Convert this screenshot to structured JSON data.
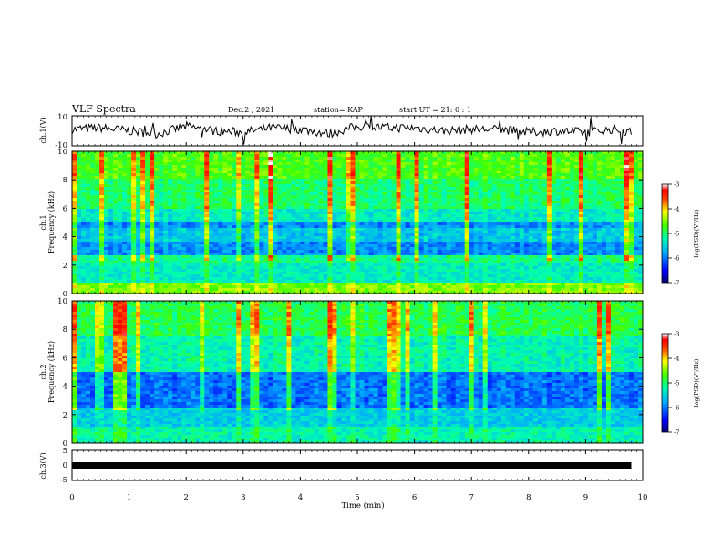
{
  "header": {
    "title": "VLF Spectra",
    "date": "Dec.2 , 2021",
    "station": "station= KAP",
    "start_ut": "start  UT =  21: 0  : 1"
  },
  "chart_data": [
    {
      "type": "line",
      "panel": "ch1-waveform",
      "ylabel": "ch.1(V)",
      "ylim": [
        -10,
        10
      ],
      "yticks": [
        "10",
        "-10"
      ],
      "x": [
        0.0,
        0.5,
        1.0,
        1.5,
        2.0,
        2.5,
        3.0,
        3.5,
        4.0,
        4.5,
        5.0,
        5.5,
        6.0,
        6.5,
        7.0,
        7.5,
        8.0,
        8.5,
        9.0,
        9.5,
        9.8
      ],
      "y": [
        1,
        2,
        0,
        -2,
        3,
        0,
        -1,
        2,
        1,
        -2,
        3,
        2,
        2,
        0,
        1,
        1,
        -1,
        0,
        -1,
        1,
        -1
      ]
    },
    {
      "type": "heatmap",
      "panel": "ch1-spectrogram",
      "ylabel": "ch.1\nFrequency  (kHz)",
      "ylim": [
        0,
        10
      ],
      "yticks": [
        "0",
        "2",
        "4",
        "6",
        "8",
        "10"
      ],
      "colorbar": {
        "label": "log(PSD)(V²/Hz)",
        "range": [
          -7,
          -3
        ],
        "ticks": [
          "-3",
          "-4",
          "-5",
          "-6",
          "-7"
        ]
      }
    },
    {
      "type": "heatmap",
      "panel": "ch2-spectrogram",
      "ylabel": "ch.2\nFrequency  (kHz)",
      "ylim": [
        0,
        10
      ],
      "yticks": [
        "0",
        "2",
        "4",
        "6",
        "8",
        "10"
      ],
      "colorbar": {
        "label": "log(PSD)(V²/Hz)",
        "range": [
          -7,
          -3
        ],
        "ticks": [
          "-3",
          "-4",
          "-5",
          "-6",
          "-7"
        ]
      }
    },
    {
      "type": "line",
      "panel": "ch3-waveform",
      "ylabel": "ch.3(V)",
      "ylim": [
        -5,
        5
      ],
      "yticks": [
        "5",
        "0",
        "-5"
      ],
      "x": [
        0.0,
        9.8
      ],
      "y": [
        0,
        0
      ]
    }
  ],
  "xaxis": {
    "xlabel": "Time  (min)",
    "xlim": [
      0,
      10
    ],
    "ticks": [
      "0",
      "1",
      "2",
      "3",
      "4",
      "5",
      "6",
      "7",
      "8",
      "9",
      "10"
    ]
  },
  "colors": {
    "line": "#000000",
    "background": "#ffffff"
  }
}
